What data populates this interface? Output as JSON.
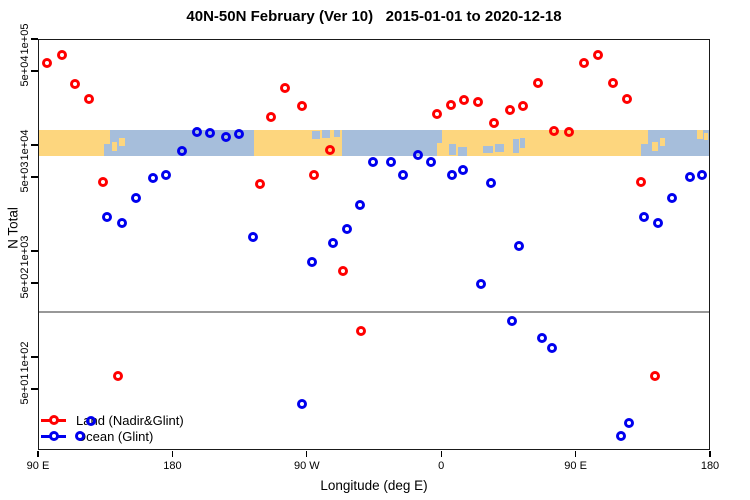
{
  "chart_data": {
    "type": "scatter",
    "title": "40N-50N February (Ver 10)   2015-01-01 to 2020-12-18",
    "xlabel": "Longitude (deg E)",
    "ylabel": "N Total",
    "legend_position": "bottom-left",
    "x_axis": {
      "min": 90,
      "max": 540,
      "note": "longitude wraps: 90E to 180 spanning 450 degrees",
      "ticks": [
        {
          "value": 90,
          "label": "90 E"
        },
        {
          "value": 180,
          "label": "180"
        },
        {
          "value": 270,
          "label": "90 W"
        },
        {
          "value": 360,
          "label": "0"
        },
        {
          "value": 450,
          "label": "90 E"
        },
        {
          "value": 540,
          "label": "180"
        }
      ]
    },
    "y_axis": {
      "scale": "log",
      "min": 13,
      "max": 100000,
      "ticks": [
        {
          "value": 100000,
          "label": "1e+05"
        },
        {
          "value": 50000,
          "label": "5e+04"
        },
        {
          "value": 10000,
          "label": "1e+04"
        },
        {
          "value": 5000,
          "label": "5e+03"
        },
        {
          "value": 1000,
          "label": "1e+03"
        },
        {
          "value": 500,
          "label": "5e+02"
        },
        {
          "value": 100,
          "label": "1e+02"
        },
        {
          "value": 50,
          "label": "5e+01"
        }
      ]
    },
    "threshold_line": {
      "n": 266,
      "color": "#989898"
    },
    "map_band": {
      "n_top": 13850,
      "n_bottom": 7870,
      "ocean_color": "#a6bedb",
      "land_color": "#fdd67e",
      "land_segments": [
        {
          "from": 90,
          "to": 138.2
        },
        {
          "from": 234.6,
          "to": 293.6
        },
        {
          "from": 357.2,
          "to": 498.5
        }
      ],
      "islands": [
        {
          "from": 139.5,
          "to": 143,
          "top": 0.45,
          "bottom": 0.8
        },
        {
          "from": 144.5,
          "to": 148,
          "top": 0.3,
          "bottom": 0.6
        },
        {
          "from": 501,
          "to": 505,
          "top": 0.45,
          "bottom": 0.8
        },
        {
          "from": 506.5,
          "to": 510,
          "top": 0.3,
          "bottom": 0.6
        },
        {
          "from": 531,
          "to": 535,
          "top": 0.0,
          "bottom": 0.35
        },
        {
          "from": 536,
          "to": 538.5,
          "top": 0.1,
          "bottom": 0.4
        }
      ],
      "lakes": [
        {
          "from": 134,
          "to": 138.2,
          "top": 0.55,
          "bottom": 1.0
        },
        {
          "from": 273.5,
          "to": 279,
          "top": 0.05,
          "bottom": 0.35
        },
        {
          "from": 280,
          "to": 285.5,
          "top": 0.0,
          "bottom": 0.3
        },
        {
          "from": 288,
          "to": 292,
          "top": 0.0,
          "bottom": 0.25
        },
        {
          "from": 357.2,
          "to": 360.5,
          "top": 0.0,
          "bottom": 0.5
        },
        {
          "from": 365.5,
          "to": 370,
          "top": 0.55,
          "bottom": 0.95
        },
        {
          "from": 371,
          "to": 377.5,
          "top": 0.65,
          "bottom": 1.0
        },
        {
          "from": 388,
          "to": 395,
          "top": 0.6,
          "bottom": 0.9
        },
        {
          "from": 396,
          "to": 402,
          "top": 0.55,
          "bottom": 0.85
        },
        {
          "from": 408,
          "to": 412,
          "top": 0.35,
          "bottom": 0.9
        },
        {
          "from": 413,
          "to": 416,
          "top": 0.3,
          "bottom": 0.7
        },
        {
          "from": 494,
          "to": 498.5,
          "top": 0.55,
          "bottom": 1.0
        }
      ]
    },
    "series": [
      {
        "name": "Land (Nadir&Glint)",
        "color": "#ff0000",
        "marker": "open-circle",
        "points": [
          [
            95.8,
            59000
          ],
          [
            105.9,
            70600
          ],
          [
            114.8,
            37400
          ],
          [
            124.4,
            27200
          ],
          [
            133.7,
            4510
          ],
          [
            143.8,
            66
          ],
          [
            238.7,
            4290
          ],
          [
            245.8,
            18500
          ],
          [
            255.4,
            34700
          ],
          [
            266.6,
            23500
          ],
          [
            274.8,
            5210
          ],
          [
            285.5,
            8980
          ],
          [
            294.0,
            648
          ],
          [
            306.3,
            176
          ],
          [
            357.0,
            19500
          ],
          [
            366.6,
            23800
          ],
          [
            375.5,
            26600
          ],
          [
            384.9,
            25300
          ],
          [
            395.6,
            16200
          ],
          [
            406.1,
            21400
          ],
          [
            414.6,
            23500
          ],
          [
            425.0,
            38700
          ],
          [
            435.7,
            13600
          ],
          [
            445.6,
            13400
          ],
          [
            455.6,
            59000
          ],
          [
            464.8,
            70600
          ],
          [
            474.8,
            38200
          ],
          [
            484.2,
            27200
          ],
          [
            493.6,
            4510
          ],
          [
            503.2,
            66
          ]
        ]
      },
      {
        "name": "Ocean (Glint)",
        "color": "#0000ee",
        "marker": "open-circle",
        "points": [
          [
            117.9,
            18
          ],
          [
            125.7,
            25
          ],
          [
            136.0,
            2110
          ],
          [
            146.4,
            1830
          ],
          [
            155.6,
            3140
          ],
          [
            167.2,
            4920
          ],
          [
            175.7,
            5210
          ],
          [
            186.2,
            8840
          ],
          [
            196.3,
            13400
          ],
          [
            205.2,
            12900
          ],
          [
            215.9,
            11800
          ],
          [
            224.8,
            12700
          ],
          [
            233.8,
            1360
          ],
          [
            266.6,
            36
          ],
          [
            273.7,
            793
          ],
          [
            287.3,
            1200
          ],
          [
            296.7,
            1600
          ],
          [
            305.6,
            2720
          ],
          [
            314.1,
            6870
          ],
          [
            326.4,
            6870
          ],
          [
            334.6,
            5210
          ],
          [
            344.7,
            8050
          ],
          [
            353.2,
            6870
          ],
          [
            367.0,
            5210
          ],
          [
            374.8,
            5810
          ],
          [
            386.6,
            485
          ],
          [
            393.3,
            4410
          ],
          [
            407.2,
            220
          ],
          [
            412.3,
            1120
          ],
          [
            427.3,
            150
          ],
          [
            434.0,
            121
          ],
          [
            480.4,
            18
          ],
          [
            486.0,
            24
          ],
          [
            495.8,
            2110
          ],
          [
            505.4,
            1830
          ],
          [
            514.4,
            3140
          ],
          [
            526.6,
            5020
          ],
          [
            534.9,
            5210
          ]
        ]
      }
    ]
  }
}
